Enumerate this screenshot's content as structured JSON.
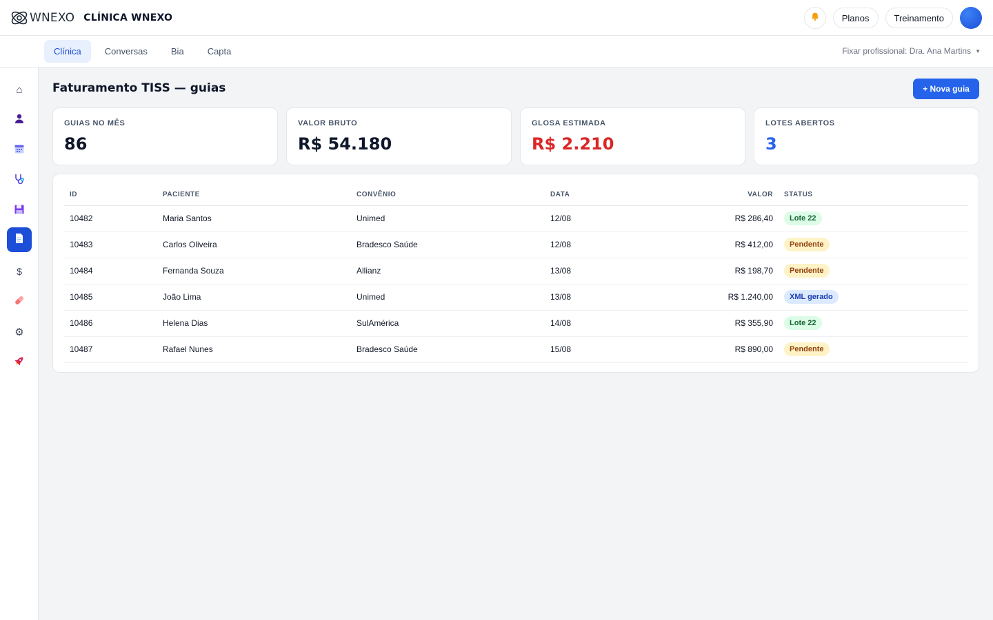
{
  "header": {
    "brand_word": "WNEXO",
    "clinic_name": "CLÍNICA WNEXO",
    "icons": {
      "logo": "wnexo-logo-icon",
      "bell": "bell-icon"
    },
    "plans_label": "Planos",
    "training_label": "Treinamento"
  },
  "subnav": {
    "tabs": [
      {
        "label": "Clínica",
        "active": true
      },
      {
        "label": "Conversas"
      },
      {
        "label": "Bia"
      },
      {
        "label": "Capta"
      }
    ],
    "professional": "Fixar profissional: Dra. Ana Martins"
  },
  "sidebar": {
    "items": [
      {
        "icon": "home-icon",
        "glyph": "⌂"
      },
      {
        "icon": "user-icon"
      },
      {
        "icon": "calendar-icon"
      },
      {
        "icon": "stethoscope-icon"
      },
      {
        "icon": "floppy-disk-icon"
      },
      {
        "icon": "document-icon",
        "active": true
      },
      {
        "icon": "dollar-icon",
        "glyph": "$"
      },
      {
        "icon": "pill-icon"
      },
      {
        "icon": "gear-icon",
        "glyph": "⚙"
      },
      {
        "icon": "rocket-icon"
      }
    ]
  },
  "page": {
    "title": "Faturamento TISS — guias",
    "new_button": "+ Nova guia"
  },
  "kpis": [
    {
      "label": "GUIAS NO MÊS",
      "value": "86",
      "color": "#0f172a"
    },
    {
      "label": "VALOR BRUTO",
      "value": "R$ 54.180",
      "color": "#0f172a"
    },
    {
      "label": "GLOSA ESTIMADA",
      "value": "R$ 2.210",
      "color": "#dc2626"
    },
    {
      "label": "LOTES ABERTOS",
      "value": "3",
      "color": "#2563eb"
    }
  ],
  "table": {
    "columns": [
      "ID",
      "PACIENTE",
      "CONVÊNIO",
      "DATA",
      "VALOR",
      "STATUS"
    ],
    "rows": [
      {
        "id": "10482",
        "patient": "Maria Santos",
        "insurer": "Unimed",
        "date": "12/08",
        "value": "R$ 286,40",
        "status": "Lote 22",
        "kind": "lote"
      },
      {
        "id": "10483",
        "patient": "Carlos Oliveira",
        "insurer": "Bradesco Saúde",
        "date": "12/08",
        "value": "R$ 412,00",
        "status": "Pendente",
        "kind": "pend"
      },
      {
        "id": "10484",
        "patient": "Fernanda Souza",
        "insurer": "Allianz",
        "date": "13/08",
        "value": "R$ 198,70",
        "status": "Pendente",
        "kind": "pend"
      },
      {
        "id": "10485",
        "patient": "João Lima",
        "insurer": "Unimed",
        "date": "13/08",
        "value": "R$ 1.240,00",
        "status": "XML gerado",
        "kind": "xml"
      },
      {
        "id": "10486",
        "patient": "Helena Dias",
        "insurer": "SulAmérica",
        "date": "14/08",
        "value": "R$ 355,90",
        "status": "Lote 22",
        "kind": "lote"
      },
      {
        "id": "10487",
        "patient": "Rafael Nunes",
        "insurer": "Bradesco Saúde",
        "date": "15/08",
        "value": "R$ 890,00",
        "status": "Pendente",
        "kind": "pend"
      }
    ]
  }
}
